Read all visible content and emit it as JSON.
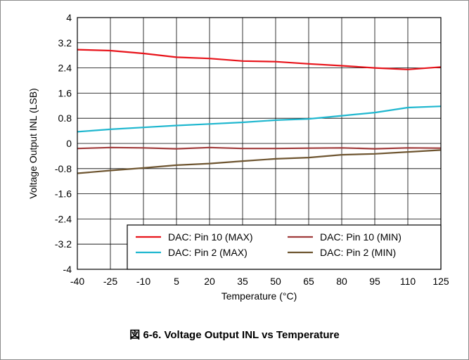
{
  "caption": "図 6-6. Voltage Output INL vs Temperature",
  "chart_data": {
    "type": "line",
    "title": "",
    "xlabel": "Temperature (°C)",
    "ylabel": "Voltage Output INL (LSB)",
    "x": [
      -40,
      -25,
      -10,
      5,
      20,
      35,
      50,
      65,
      80,
      95,
      110,
      125
    ],
    "xticks": [
      "-40",
      "-25",
      "-10",
      "5",
      "20",
      "35",
      "50",
      "65",
      "80",
      "95",
      "110",
      "125"
    ],
    "yticks": [
      "4",
      "3.2",
      "2.4",
      "1.6",
      "0.8",
      "0",
      "-0.8",
      "-1.6",
      "-2.4",
      "-3.2",
      "-4"
    ],
    "xlim": [
      -40,
      125
    ],
    "ylim": [
      -4,
      4
    ],
    "grid": true,
    "legend_position": "bottom-right",
    "series": [
      {
        "name": "DAC: Pin 10 (MAX)",
        "color": "#e8141b",
        "values": [
          2.98,
          2.95,
          2.86,
          2.74,
          2.7,
          2.62,
          2.6,
          2.53,
          2.47,
          2.4,
          2.35,
          2.43
        ]
      },
      {
        "name": "DAC: Pin 10 (MIN)",
        "color": "#a03a3a",
        "values": [
          -0.16,
          -0.13,
          -0.14,
          -0.17,
          -0.13,
          -0.16,
          -0.16,
          -0.15,
          -0.14,
          -0.17,
          -0.14,
          -0.15
        ]
      },
      {
        "name": "DAC: Pin 2 (MAX)",
        "color": "#1fb7cf",
        "values": [
          0.37,
          0.45,
          0.51,
          0.57,
          0.62,
          0.67,
          0.74,
          0.78,
          0.88,
          0.98,
          1.14,
          1.18
        ]
      },
      {
        "name": "DAC: Pin 2 (MIN)",
        "color": "#6e5530",
        "values": [
          -0.95,
          -0.86,
          -0.78,
          -0.69,
          -0.64,
          -0.56,
          -0.49,
          -0.45,
          -0.36,
          -0.33,
          -0.27,
          -0.21
        ]
      }
    ],
    "legend_order": [
      0,
      1,
      2,
      3
    ]
  }
}
